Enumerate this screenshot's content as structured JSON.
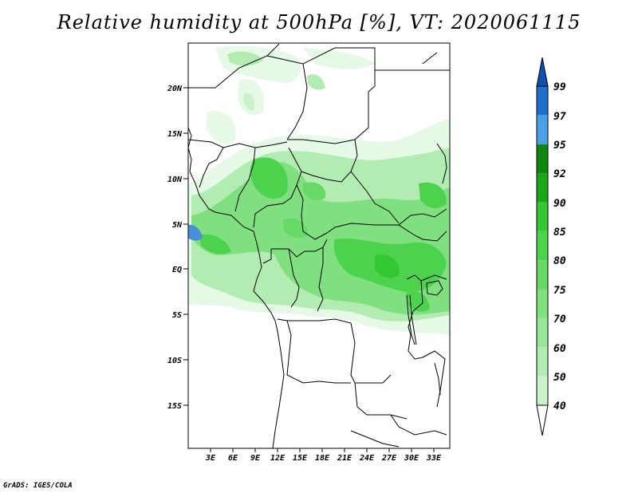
{
  "title": "Relative humidity at 500hPa [%], VT: 2020061115",
  "credit": "GrADS: IGES/COLA",
  "map": {
    "lat_labels": [
      "20N",
      "15N",
      "10N",
      "5N",
      "EQ",
      "5S",
      "10S",
      "15S"
    ],
    "lon_labels": [
      "3E",
      "6E",
      "9E",
      "12E",
      "15E",
      "18E",
      "21E",
      "24E",
      "27E",
      "30E",
      "33E"
    ]
  },
  "colorbar": {
    "levels": [
      "40",
      "50",
      "60",
      "70",
      "75",
      "80",
      "85",
      "90",
      "92",
      "95",
      "97",
      "99"
    ],
    "colors": [
      "#e6f8e6",
      "#ccf2cc",
      "#b3ecb3",
      "#99e699",
      "#80e080",
      "#66d966",
      "#4dd24d",
      "#33c833",
      "#1aa81a",
      "#108810",
      "#4aa0e6",
      "#2070d0",
      "#1050b0"
    ]
  },
  "colors": {
    "land_border": "#000000",
    "water": "#4a90d9"
  }
}
